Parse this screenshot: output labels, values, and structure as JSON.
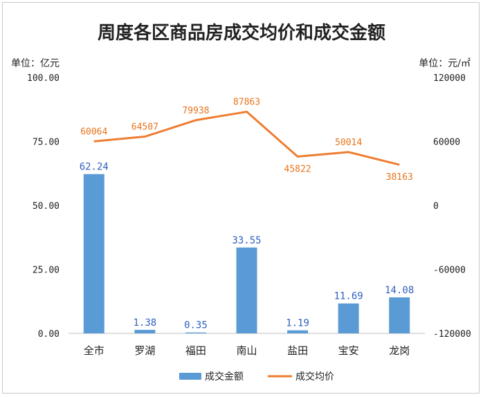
{
  "chart_data": {
    "type": "bar+line",
    "title": "周度各区商品房成交均价和成交金额",
    "y_left_unit": "单位：亿元",
    "y_right_unit": "单位：元/㎡",
    "categories": [
      "全市",
      "罗湖",
      "福田",
      "南山",
      "盐田",
      "宝安",
      "龙岗"
    ],
    "y_left": {
      "min": 0,
      "max": 100,
      "ticks": [
        "100.00",
        "75.00",
        "50.00",
        "25.00",
        "0.00"
      ]
    },
    "y_right": {
      "min": -120000,
      "max": 120000,
      "ticks": [
        "120000",
        "60000",
        "0",
        "-60000",
        "-120000"
      ]
    },
    "series": [
      {
        "name": "成交金额",
        "type": "bar",
        "axis": "left",
        "color": "#5b9bd5",
        "values": [
          62.24,
          1.38,
          0.35,
          33.55,
          1.19,
          11.69,
          14.08
        ],
        "labels": [
          "62.24",
          "1.38",
          "0.35",
          "33.55",
          "1.19",
          "11.69",
          "14.08"
        ]
      },
      {
        "name": "成交均价",
        "type": "line",
        "axis": "right",
        "color": "#ed7d31",
        "values": [
          60064,
          64507,
          79938,
          87863,
          45822,
          50014,
          38163
        ],
        "labels": [
          "60064",
          "64507",
          "79938",
          "87863",
          "45822",
          "50014",
          "38163"
        ]
      }
    ],
    "legend_position": "bottom",
    "grid": false
  }
}
